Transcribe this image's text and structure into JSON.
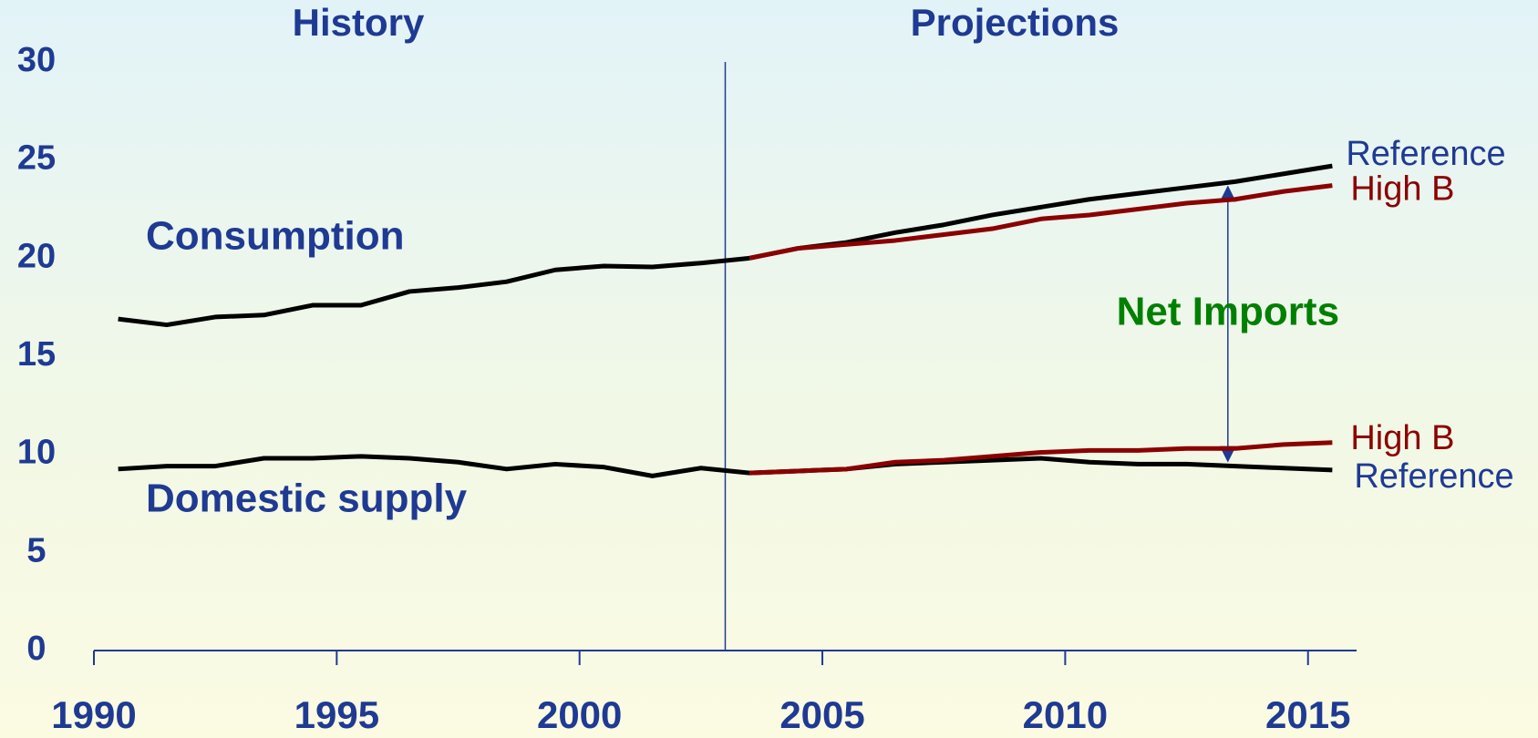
{
  "chart_data": {
    "type": "line",
    "annotations": {
      "history": "History",
      "projections": "Projections",
      "net_imports": "Net Imports"
    },
    "divider_x": 2003,
    "x": [
      1990.5,
      1991.5,
      1992.5,
      1993.5,
      1994.5,
      1995.5,
      1996.5,
      1997.5,
      1998.5,
      1999.5,
      2000.5,
      2001.5,
      2002.5,
      2003.5,
      2004.5,
      2005.5,
      2006.5,
      2007.5,
      2008.5,
      2009.5,
      2010.5,
      2011.5,
      2012.5,
      2013.5,
      2014.5,
      2015.5
    ],
    "series": [
      {
        "name": "Consumption",
        "color": "#000000",
        "values": [
          16.9,
          16.6,
          17.0,
          17.1,
          17.6,
          17.6,
          18.3,
          18.5,
          18.8,
          19.4,
          19.6,
          19.55,
          19.75,
          20.0,
          null,
          null,
          null,
          null,
          null,
          null,
          null,
          null,
          null,
          null,
          null,
          null
        ]
      },
      {
        "name": "Reference",
        "color": "#000000",
        "values": [
          null,
          null,
          null,
          null,
          null,
          null,
          null,
          null,
          null,
          null,
          null,
          null,
          null,
          20.0,
          20.5,
          20.8,
          21.3,
          21.7,
          22.2,
          22.6,
          23.0,
          23.3,
          23.6,
          23.9,
          24.3,
          24.7
        ]
      },
      {
        "name": "High B",
        "color": "#8b0000",
        "values": [
          null,
          null,
          null,
          null,
          null,
          null,
          null,
          null,
          null,
          null,
          null,
          null,
          null,
          20.0,
          20.5,
          20.7,
          20.9,
          21.2,
          21.5,
          22.0,
          22.2,
          22.5,
          22.8,
          23.0,
          23.4,
          23.7
        ]
      },
      {
        "name": "Domestic supply",
        "color": "#000000",
        "values": [
          9.25,
          9.4,
          9.4,
          9.8,
          9.8,
          9.9,
          9.8,
          9.6,
          9.25,
          9.5,
          9.35,
          8.9,
          9.3,
          9.05,
          null,
          null,
          null,
          null,
          null,
          null,
          null,
          null,
          null,
          null,
          null,
          null
        ]
      },
      {
        "name": "Reference",
        "color": "#000000",
        "values": [
          null,
          null,
          null,
          null,
          null,
          null,
          null,
          null,
          null,
          null,
          null,
          null,
          null,
          9.05,
          9.15,
          9.25,
          9.5,
          9.6,
          9.7,
          9.8,
          9.6,
          9.5,
          9.5,
          9.4,
          9.3,
          9.2
        ]
      },
      {
        "name": "High B",
        "color": "#8b0000",
        "values": [
          null,
          null,
          null,
          null,
          null,
          null,
          null,
          null,
          null,
          null,
          null,
          null,
          null,
          9.05,
          9.15,
          9.25,
          9.6,
          9.7,
          9.9,
          10.1,
          10.2,
          10.2,
          10.3,
          10.3,
          10.5,
          10.6
        ]
      }
    ],
    "xlim": [
      1990,
      2016
    ],
    "xticks": [
      1990,
      1995,
      2000,
      2005,
      2010,
      2015
    ],
    "ylim": [
      0,
      30
    ],
    "yticks": [
      0,
      5,
      10,
      15,
      20,
      25,
      30
    ],
    "grid": false
  }
}
